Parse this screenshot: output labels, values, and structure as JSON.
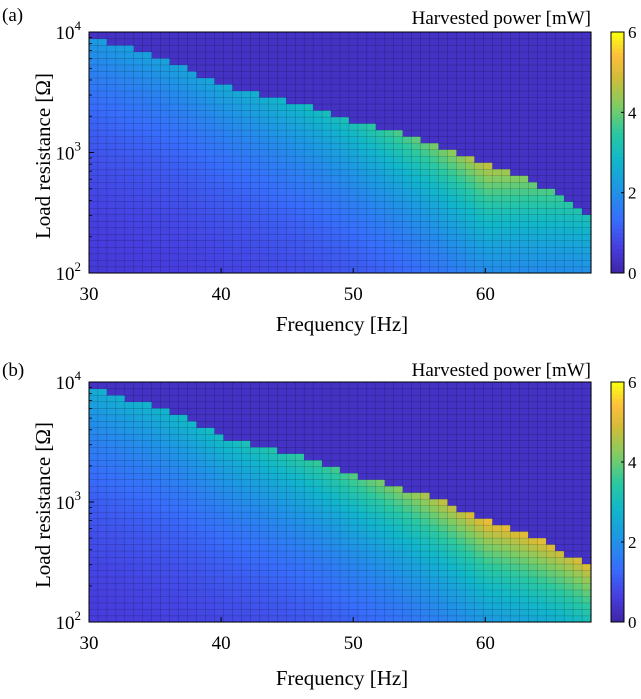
{
  "chart_data": [
    {
      "panel": "(a)",
      "type": "heatmap",
      "title": "Harvested power [mW]",
      "xlabel": "Frequency [Hz]",
      "ylabel": "Load resistance [Ω]",
      "x_range": [
        30,
        68
      ],
      "y_range": [
        100,
        10000
      ],
      "y_scale": "log",
      "x_ticks": [
        "30",
        "40",
        "50",
        "60"
      ],
      "x_tick_values": [
        30,
        40,
        50,
        60
      ],
      "y_ticks": [
        {
          "base": "10",
          "exp": "2"
        },
        {
          "base": "10",
          "exp": "3"
        },
        {
          "base": "10",
          "exp": "4"
        }
      ],
      "y_tick_values": [
        100,
        1000,
        10000
      ],
      "colorbar": {
        "min": 0,
        "max": 6,
        "ticks": [
          "0",
          "2",
          "4",
          "6"
        ],
        "tick_values": [
          0,
          2,
          4,
          6
        ],
        "colormap": "parula"
      },
      "ridge_description": "power high region bounded by curve R(f)",
      "ridge": {
        "f": [
          30,
          40,
          50,
          60,
          68
        ],
        "R": [
          9000,
          3600,
          1800,
          800,
          300
        ]
      },
      "peak_power_along_ridge": {
        "f": [
          30,
          40,
          50,
          60,
          68
        ],
        "P": [
          2.2,
          2.5,
          3.2,
          4.8,
          3.2
        ]
      },
      "background_power": 0.3,
      "grid": "on"
    },
    {
      "panel": "(b)",
      "type": "heatmap",
      "title": "Harvested power [mW]",
      "xlabel": "Frequency [Hz]",
      "ylabel": "Load resistance [Ω]",
      "x_range": [
        30,
        68
      ],
      "y_range": [
        100,
        10000
      ],
      "y_scale": "log",
      "x_ticks": [
        "30",
        "40",
        "50",
        "60"
      ],
      "x_tick_values": [
        30,
        40,
        50,
        60
      ],
      "y_ticks": [
        {
          "base": "10",
          "exp": "2"
        },
        {
          "base": "10",
          "exp": "3"
        },
        {
          "base": "10",
          "exp": "4"
        }
      ],
      "y_tick_values": [
        100,
        1000,
        10000
      ],
      "colorbar": {
        "min": 0,
        "max": 6,
        "ticks": [
          "0",
          "2",
          "4",
          "6"
        ],
        "tick_values": [
          0,
          2,
          4,
          6
        ],
        "colormap": "parula"
      },
      "ridge": {
        "f": [
          30,
          40,
          50,
          60,
          68
        ],
        "R": [
          9000,
          3500,
          1650,
          700,
          280
        ]
      },
      "peak_power_along_ridge": {
        "f": [
          30,
          40,
          50,
          60,
          68
        ],
        "P": [
          2.6,
          3.0,
          3.8,
          5.2,
          5.0
        ]
      },
      "background_power": 0.3,
      "grid": "on"
    }
  ]
}
